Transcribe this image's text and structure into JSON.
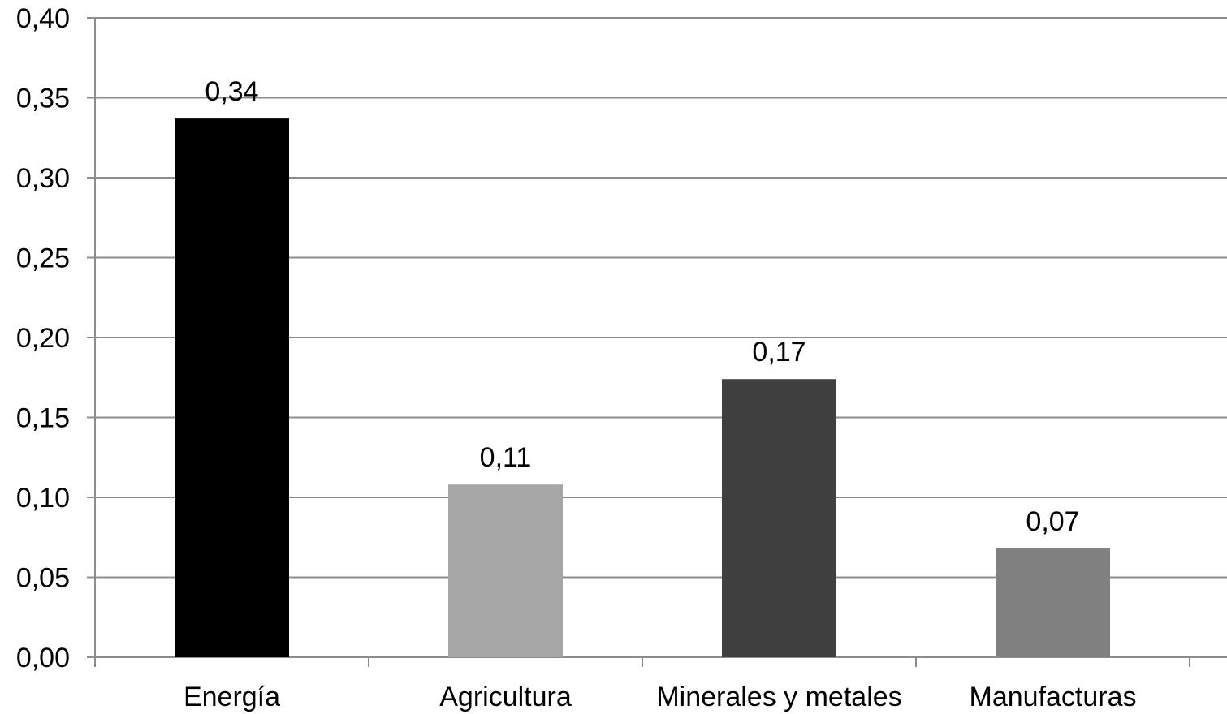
{
  "chart_data": {
    "type": "bar",
    "title": "",
    "xlabel": "",
    "ylabel": "",
    "categories": [
      "Energía",
      "Agricultura",
      "Minerales y metales",
      "Manufacturas"
    ],
    "values": [
      0.337,
      0.108,
      0.174,
      0.068
    ],
    "data_labels": [
      "0,34",
      "0,11",
      "0,17",
      "0,07"
    ],
    "bar_colors": [
      "#000000",
      "#a6a6a6",
      "#404040",
      "#808080"
    ],
    "ylim": [
      0,
      0.4
    ],
    "y_ticks": [
      0.0,
      0.05,
      0.1,
      0.15,
      0.2,
      0.25,
      0.3,
      0.35,
      0.4
    ],
    "y_tick_labels": [
      "0,00",
      "0,05",
      "0,10",
      "0,15",
      "0,20",
      "0,25",
      "0,30",
      "0,35",
      "0,40"
    ],
    "grid": true,
    "legend": "none"
  }
}
